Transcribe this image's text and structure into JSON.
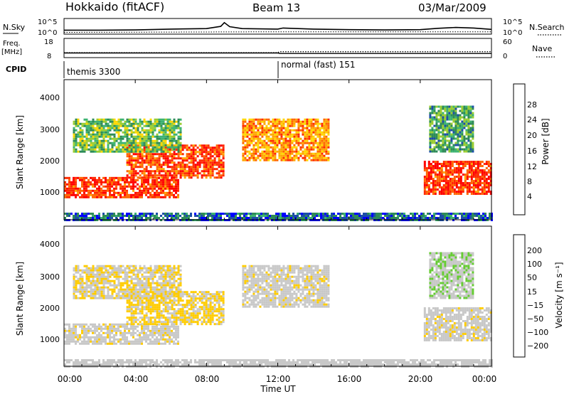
{
  "header": {
    "station": "Hokkaido (fitACF)",
    "beam": "Beam 13",
    "date": "03/Mar/2009"
  },
  "nsky_panel": {
    "left_label": "N.Sky",
    "left_ticks": [
      "10^5",
      "10^0"
    ],
    "right_label": "N.Search",
    "right_ticks": [
      "10^5",
      "10^0"
    ]
  },
  "freq_panel": {
    "left_label_line1": "Freq.",
    "left_label_line2": "[MHz]",
    "left_ticks": [
      "18",
      "8"
    ],
    "right_label": "Nave",
    "right_ticks": [
      "60",
      "0"
    ]
  },
  "cpid_panel": {
    "label": "CPID",
    "modes": [
      "themis 3300",
      "normal (fast) 151"
    ]
  },
  "x_axis": {
    "label": "Time UT",
    "ticks": [
      "00:00",
      "04:00",
      "08:00",
      "12:00",
      "16:00",
      "20:00",
      "00:00"
    ]
  },
  "power_panel": {
    "ylabel": "Slant Range [km]",
    "yticks": [
      "1000",
      "2000",
      "3000",
      "4000"
    ],
    "colorbar_label": "Power [dB]",
    "colorbar_ticks": [
      "4",
      "8",
      "12",
      "16",
      "20",
      "24",
      "28"
    ]
  },
  "velocity_panel": {
    "ylabel": "Slant Range [km]",
    "yticks": [
      "1000",
      "2000",
      "3000",
      "4000"
    ],
    "colorbar_label": "Velocity [m s⁻¹]",
    "colorbar_ticks": [
      "200",
      "100",
      "50",
      "15",
      "−15",
      "−50",
      "−100",
      "−200"
    ]
  },
  "colors": {
    "power_scale": [
      "#0000ff",
      "#1c4ea8",
      "#2e8b57",
      "#3cb371",
      "#9acd32",
      "#ffd700",
      "#ffa500",
      "#ff6600",
      "#ff2a00",
      "#ff0000"
    ],
    "velocity_scale": [
      "#0000ff",
      "#1c4ea8",
      "#2e8b57",
      "#66cc33",
      "#c8c8c8",
      "#c8c8c8",
      "#ffcc00",
      "#ff9900",
      "#ff5500",
      "#ff0000"
    ],
    "ground_scatter": "#c8c8c8"
  },
  "chart_data": [
    {
      "type": "line",
      "title": "N.Sky / N.Search",
      "x": "time UT (hours)",
      "series": [
        {
          "name": "N.Sky",
          "points": [
            [
              0,
              1.2
            ],
            [
              2,
              1.2
            ],
            [
              4,
              1.3
            ],
            [
              6,
              1.6
            ],
            [
              8,
              1.8
            ],
            [
              8.8,
              2.6
            ],
            [
              9,
              4.0
            ],
            [
              9.3,
              2.5
            ],
            [
              10,
              1.8
            ],
            [
              12,
              1.6
            ],
            [
              12.3,
              2.0
            ],
            [
              14,
              1.6
            ],
            [
              16,
              1.4
            ],
            [
              18,
              1.3
            ],
            [
              20,
              1.4
            ],
            [
              21,
              1.9
            ],
            [
              22,
              2.2
            ],
            [
              23,
              2.0
            ],
            [
              24,
              1.5
            ]
          ]
        },
        {
          "name": "N.Search",
          "points": [
            [
              0,
              0.4
            ],
            [
              6,
              0.5
            ],
            [
              12,
              0.6
            ],
            [
              18,
              0.6
            ],
            [
              24,
              0.6
            ]
          ]
        }
      ]
    },
    {
      "type": "line",
      "title": "Freq. / Nave",
      "series": [
        {
          "name": "Freq.",
          "points": [
            [
              0,
              10.5
            ],
            [
              12,
              10.5
            ],
            [
              12.1,
              10.2
            ],
            [
              24,
              10.2
            ]
          ]
        },
        {
          "name": "Nave",
          "points": [
            [
              0,
              16
            ],
            [
              12,
              16
            ],
            [
              12.1,
              20
            ],
            [
              24,
              20
            ]
          ]
        }
      ]
    },
    {
      "type": "heatmap",
      "title": "Power [dB]",
      "x_range": [
        0,
        24
      ],
      "y_range": [
        180,
        4500
      ],
      "colorbar_range": [
        3,
        31
      ],
      "regions": [
        {
          "t0": 0.0,
          "t1": 6.4,
          "r0": 900,
          "r1": 1500,
          "power": 27
        },
        {
          "t0": 3.5,
          "t1": 9.0,
          "r0": 1500,
          "r1": 2500,
          "power": 26
        },
        {
          "t0": 0.5,
          "t1": 6.5,
          "r0": 2300,
          "r1": 3300,
          "power": 14
        },
        {
          "t0": 10.0,
          "t1": 14.8,
          "r0": 2000,
          "r1": 3300,
          "power": 22
        },
        {
          "t0": 20.2,
          "t1": 24.0,
          "r0": 1000,
          "r1": 2000,
          "power": 27
        },
        {
          "t0": 20.5,
          "t1": 23.0,
          "r0": 2300,
          "r1": 3700,
          "power": 12
        },
        {
          "t0": 0.0,
          "t1": 24.0,
          "r0": 180,
          "r1": 400,
          "power": 8
        }
      ]
    },
    {
      "type": "heatmap",
      "title": "Velocity [m s⁻¹]",
      "x_range": [
        0,
        24
      ],
      "y_range": [
        180,
        4500
      ],
      "colorbar_range": [
        -200,
        200
      ],
      "regions": [
        {
          "t0": 0.0,
          "t1": 6.4,
          "r0": 900,
          "r1": 1500,
          "velocity": 0
        },
        {
          "t0": 3.5,
          "t1": 9.0,
          "r0": 1500,
          "r1": 2500,
          "velocity": -20
        },
        {
          "t0": 0.5,
          "t1": 6.5,
          "r0": 2300,
          "r1": 3300,
          "velocity": -10
        },
        {
          "t0": 10.0,
          "t1": 14.8,
          "r0": 2000,
          "r1": 3300,
          "velocity": 0
        },
        {
          "t0": 20.2,
          "t1": 24.0,
          "r0": 1000,
          "r1": 2000,
          "velocity": 0
        },
        {
          "t0": 20.5,
          "t1": 23.0,
          "r0": 2300,
          "r1": 3700,
          "velocity": 40
        },
        {
          "t0": 0.0,
          "t1": 24.0,
          "r0": 180,
          "r1": 400,
          "velocity": 30
        }
      ]
    }
  ]
}
